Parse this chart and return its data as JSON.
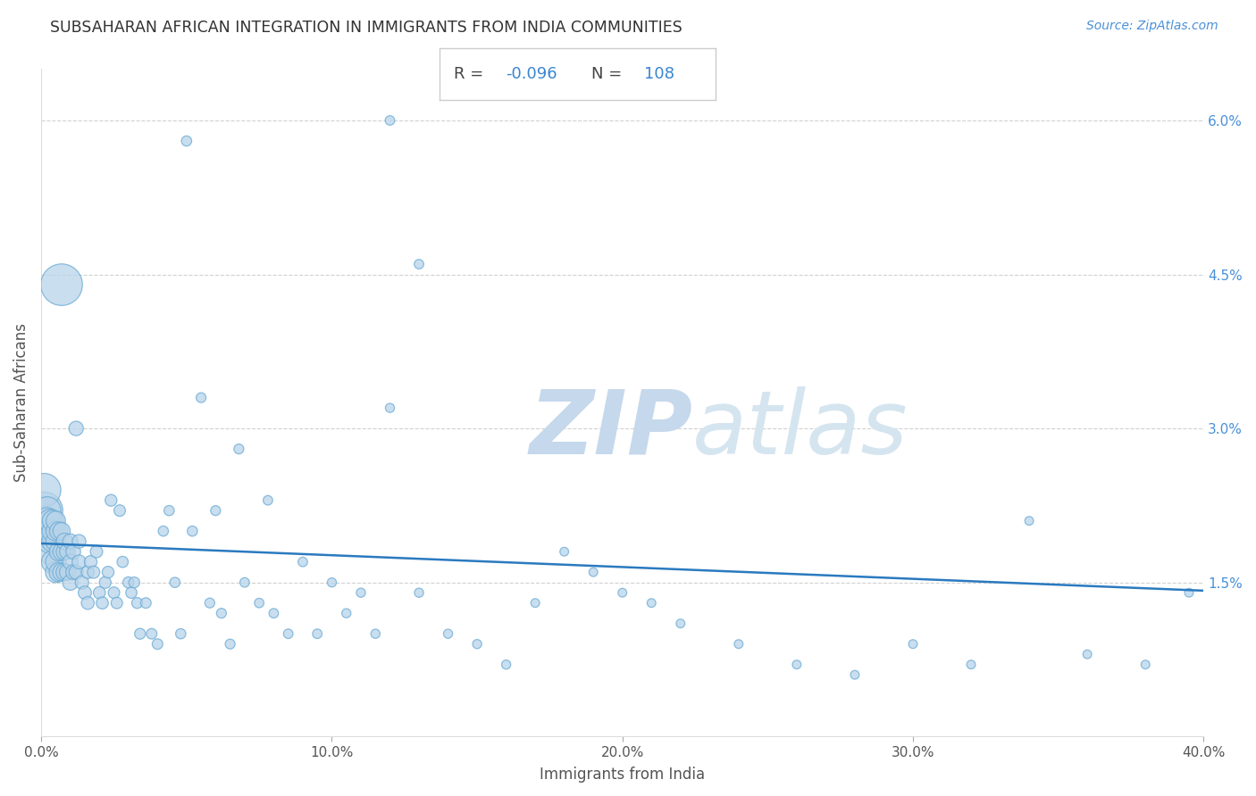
{
  "title": "SUBSAHARAN AFRICAN INTEGRATION IN IMMIGRANTS FROM INDIA COMMUNITIES",
  "source": "Source: ZipAtlas.com",
  "xlabel": "Immigrants from India",
  "ylabel": "Sub-Saharan Africans",
  "R": -0.096,
  "N": 108,
  "xlim": [
    0.0,
    0.4
  ],
  "ylim": [
    0.0,
    0.065
  ],
  "xticks": [
    0.0,
    0.1,
    0.2,
    0.3,
    0.4
  ],
  "yticks": [
    0.015,
    0.03,
    0.045,
    0.06
  ],
  "ytick_labels": [
    "1.5%",
    "3.0%",
    "4.5%",
    "6.0%"
  ],
  "xtick_labels": [
    "0.0%",
    "10.0%",
    "20.0%",
    "30.0%",
    "40.0%"
  ],
  "scatter_color": "#b8d4ea",
  "scatter_edge_color": "#6aaad4",
  "line_color": "#2a7abf",
  "watermark_zip": "ZIP",
  "watermark_atlas": "atlas",
  "background_color": "#ffffff",
  "line_x0": 0.0,
  "line_y0": 0.0188,
  "line_x1": 0.4,
  "line_y1": 0.0142,
  "scatter_x": [
    0.001,
    0.001,
    0.002,
    0.002,
    0.002,
    0.003,
    0.003,
    0.003,
    0.003,
    0.004,
    0.004,
    0.004,
    0.004,
    0.005,
    0.005,
    0.005,
    0.005,
    0.005,
    0.006,
    0.006,
    0.006,
    0.007,
    0.007,
    0.007,
    0.008,
    0.008,
    0.008,
    0.009,
    0.009,
    0.01,
    0.01,
    0.01,
    0.011,
    0.011,
    0.012,
    0.012,
    0.013,
    0.013,
    0.014,
    0.015,
    0.016,
    0.016,
    0.017,
    0.018,
    0.019,
    0.02,
    0.021,
    0.022,
    0.023,
    0.024,
    0.025,
    0.026,
    0.027,
    0.028,
    0.03,
    0.031,
    0.032,
    0.033,
    0.034,
    0.036,
    0.038,
    0.04,
    0.042,
    0.044,
    0.046,
    0.048,
    0.05,
    0.052,
    0.055,
    0.058,
    0.06,
    0.062,
    0.065,
    0.068,
    0.07,
    0.075,
    0.078,
    0.08,
    0.085,
    0.09,
    0.095,
    0.1,
    0.105,
    0.11,
    0.115,
    0.12,
    0.13,
    0.14,
    0.15,
    0.16,
    0.17,
    0.18,
    0.19,
    0.2,
    0.21,
    0.22,
    0.24,
    0.26,
    0.28,
    0.3,
    0.32,
    0.34,
    0.36,
    0.38,
    0.395,
    0.12,
    0.13,
    0.007
  ],
  "scatter_y": [
    0.022,
    0.024,
    0.02,
    0.022,
    0.021,
    0.018,
    0.019,
    0.02,
    0.021,
    0.017,
    0.019,
    0.02,
    0.021,
    0.016,
    0.017,
    0.019,
    0.02,
    0.021,
    0.016,
    0.018,
    0.02,
    0.016,
    0.018,
    0.02,
    0.016,
    0.018,
    0.019,
    0.016,
    0.018,
    0.015,
    0.017,
    0.019,
    0.016,
    0.018,
    0.03,
    0.016,
    0.017,
    0.019,
    0.015,
    0.014,
    0.013,
    0.016,
    0.017,
    0.016,
    0.018,
    0.014,
    0.013,
    0.015,
    0.016,
    0.023,
    0.014,
    0.013,
    0.022,
    0.017,
    0.015,
    0.014,
    0.015,
    0.013,
    0.01,
    0.013,
    0.01,
    0.009,
    0.02,
    0.022,
    0.015,
    0.01,
    0.058,
    0.02,
    0.033,
    0.013,
    0.022,
    0.012,
    0.009,
    0.028,
    0.015,
    0.013,
    0.023,
    0.012,
    0.01,
    0.017,
    0.01,
    0.015,
    0.012,
    0.014,
    0.01,
    0.032,
    0.014,
    0.01,
    0.009,
    0.007,
    0.013,
    0.018,
    0.016,
    0.014,
    0.013,
    0.011,
    0.009,
    0.007,
    0.006,
    0.009,
    0.007,
    0.021,
    0.008,
    0.007,
    0.014,
    0.06,
    0.046,
    0.044
  ],
  "scatter_size": [
    200,
    160,
    130,
    110,
    100,
    90,
    85,
    80,
    78,
    75,
    70,
    68,
    65,
    62,
    60,
    58,
    56,
    54,
    52,
    50,
    48,
    46,
    44,
    43,
    41,
    40,
    39,
    37,
    36,
    35,
    34,
    33,
    32,
    31,
    30,
    29,
    28,
    27,
    26,
    25,
    24,
    24,
    23,
    22,
    22,
    21,
    21,
    20,
    20,
    20,
    19,
    19,
    19,
    18,
    18,
    18,
    17,
    17,
    17,
    16,
    16,
    16,
    15,
    15,
    15,
    15,
    15,
    15,
    14,
    14,
    14,
    14,
    14,
    14,
    13,
    13,
    13,
    13,
    13,
    13,
    13,
    12,
    12,
    12,
    12,
    12,
    12,
    12,
    12,
    12,
    11,
    11,
    11,
    11,
    11,
    11,
    11,
    11,
    11,
    11,
    11,
    11,
    11,
    11,
    11,
    13,
    13,
    250
  ]
}
